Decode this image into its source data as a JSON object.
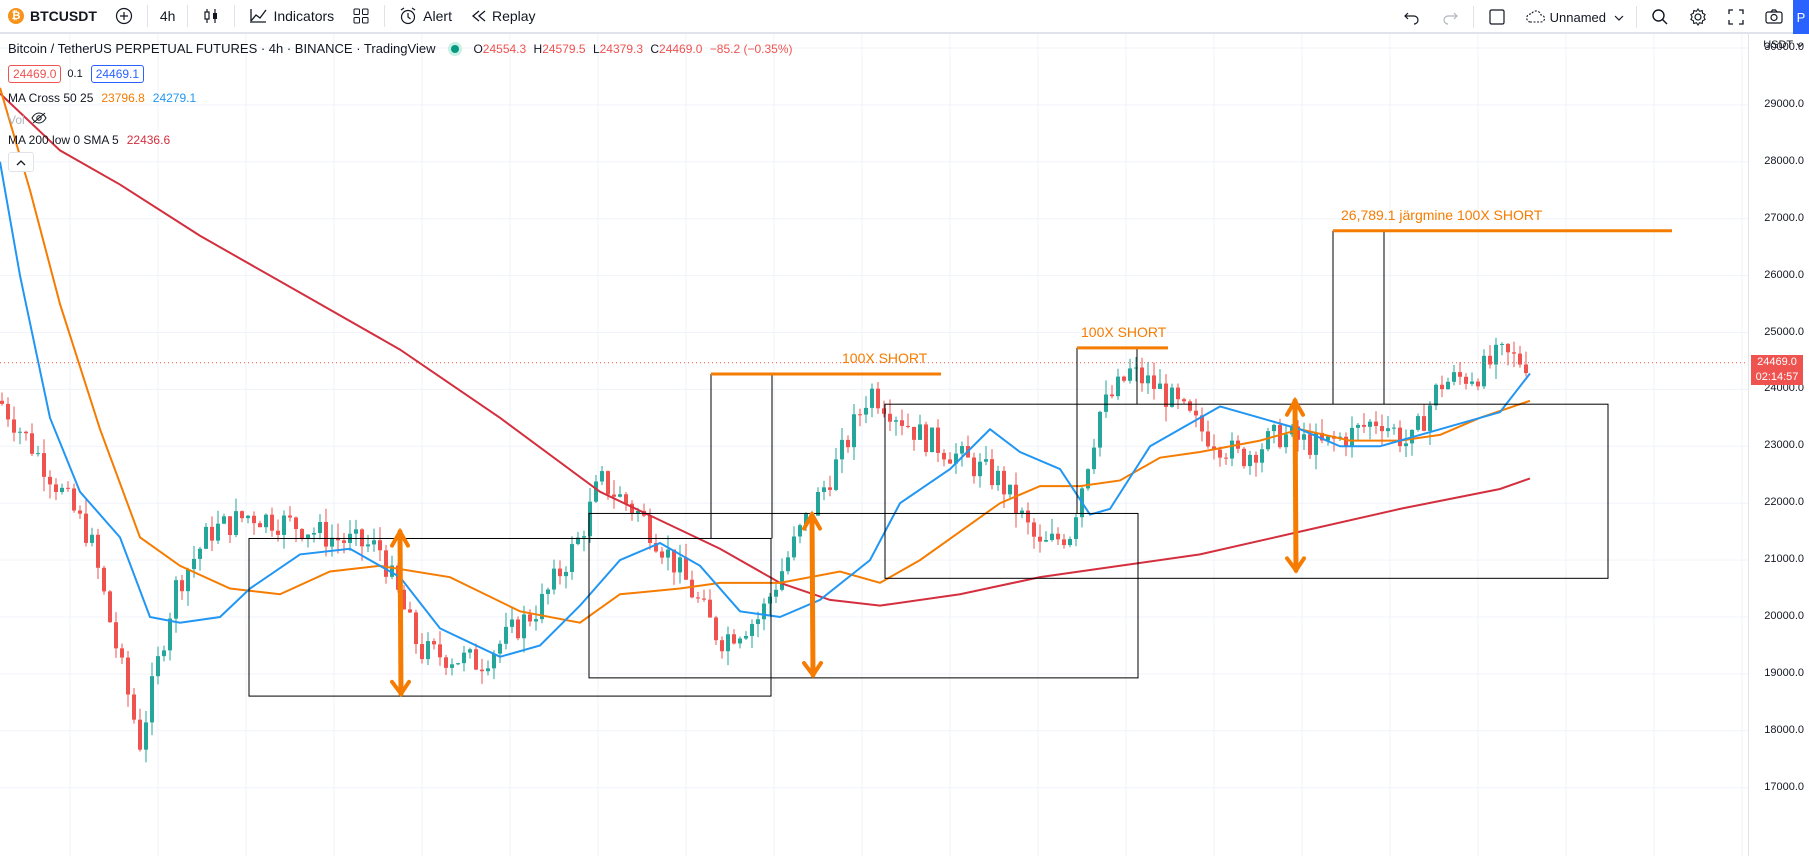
{
  "toolbar": {
    "symbol": "BTCUSDT",
    "symbol_icon": "bitcoin-icon",
    "interval": "4h",
    "indicators_label": "Indicators",
    "alert_label": "Alert",
    "replay_label": "Replay",
    "layout_name": "Unnamed",
    "publish_label": "P"
  },
  "legend": {
    "title": "Bitcoin / TetherUS PERPETUAL FUTURES · 4h · BINANCE · TradingView",
    "ohlc": {
      "o_label": "O",
      "o": "24554.3",
      "h_label": "H",
      "h": "24579.5",
      "l_label": "L",
      "l": "24379.3",
      "c_label": "C",
      "c": "24469.0",
      "change": "−85.2 (−0.35%)"
    },
    "bid": "24469.0",
    "spread": "0.1",
    "ask": "24469.1",
    "indicators": [
      {
        "name": "MA Cross 50 25",
        "value1": "23796.8",
        "value2": "24279.1"
      },
      {
        "name": "Vol",
        "hidden": true
      },
      {
        "name": "MA 200 low 0 SMA 5",
        "value1": "22436.6"
      }
    ]
  },
  "price_axis": {
    "currency": "USDT",
    "labels": [
      "30000.0",
      "29000.0",
      "28000.0",
      "27000.0",
      "26000.0",
      "25000.0",
      "24000.0",
      "23000.0",
      "22000.0",
      "21000.0",
      "20000.0",
      "19000.0",
      "18000.0",
      "17000.0"
    ],
    "last_price": "24469.0",
    "countdown": "02:14:57"
  },
  "annotations": [
    {
      "text": "100X SHORT",
      "price": 24250
    },
    {
      "text": "100X SHORT",
      "price": 24730
    },
    {
      "text": "26,789.1 järgmine 100X SHORT",
      "price": 26789.1
    }
  ],
  "colors": {
    "up": "#26a69a",
    "down": "#ef5350",
    "ma_fast": "#2196f3",
    "ma_slow": "#f57c00",
    "ma_200": "#d32f3e",
    "annotation": "#f57c00",
    "accent": "#2962ff",
    "bitcoin": "#f7931a",
    "boxes": "#000000"
  }
}
